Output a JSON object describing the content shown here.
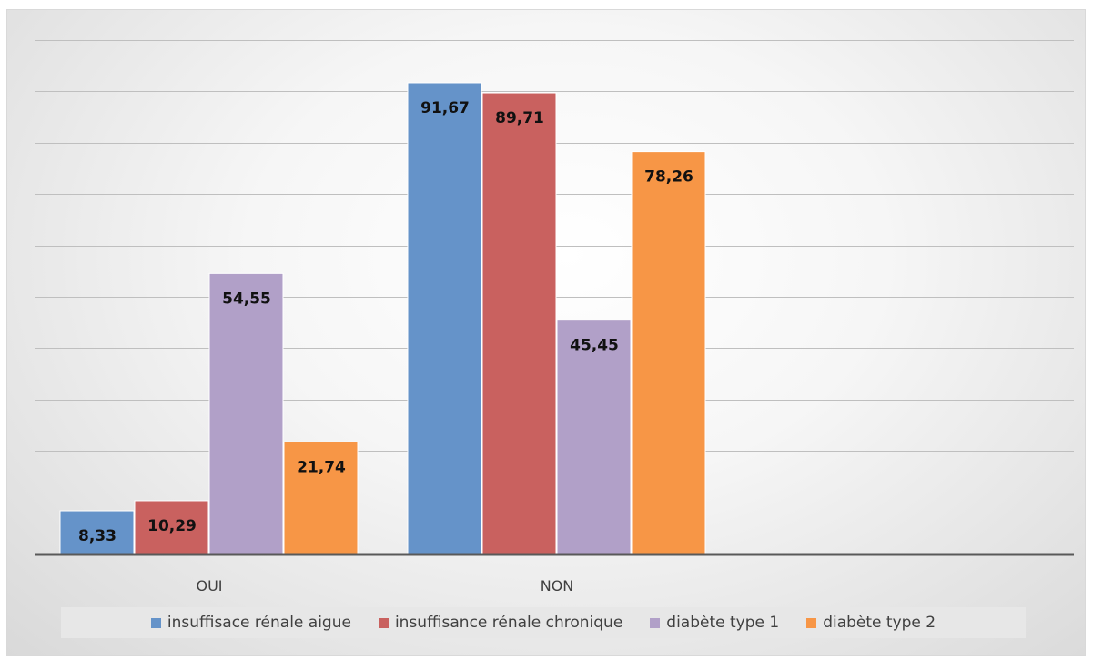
{
  "chart_data": {
    "type": "bar",
    "categories": [
      "OUI",
      "NON"
    ],
    "series": [
      {
        "name": "insuffisace rénale aigue",
        "values": [
          8.33,
          91.67
        ],
        "labels": [
          "8,33",
          "91,67"
        ],
        "color": "#6593c9"
      },
      {
        "name": "insuffisance rénale chronique",
        "values": [
          10.29,
          89.71
        ],
        "labels": [
          "10,29",
          "89,71"
        ],
        "color": "#c9615f"
      },
      {
        "name": "diabète type 1",
        "values": [
          54.55,
          45.45
        ],
        "labels": [
          "54,55",
          "45,45"
        ],
        "color": "#b1a0c8"
      },
      {
        "name": "diabète type 2",
        "values": [
          21.74,
          78.26
        ],
        "labels": [
          "21,74",
          "78,26"
        ],
        "color": "#f79646"
      }
    ],
    "title": "",
    "xlabel": "",
    "ylabel": "",
    "ylim": [
      0,
      100
    ],
    "y_gridlines": [
      10,
      20,
      30,
      40,
      50,
      60,
      70,
      80,
      90,
      100
    ],
    "y_tick_labels_shown": false,
    "grid": true,
    "legend_position": "bottom"
  }
}
